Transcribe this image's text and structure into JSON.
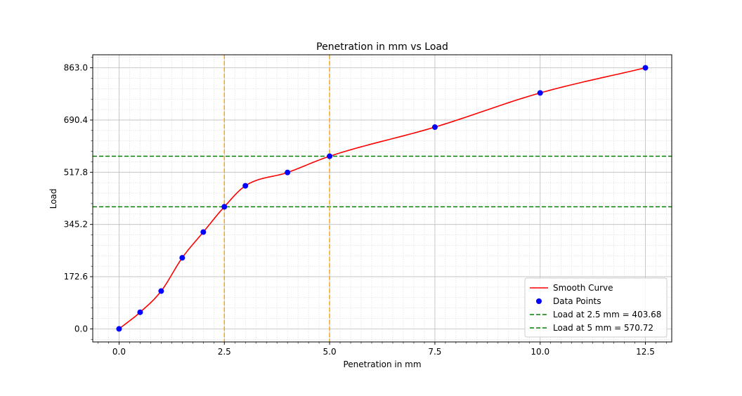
{
  "chart_data": {
    "type": "line",
    "title": "Penetration in mm vs Load",
    "xlabel": "Penetration in mm",
    "ylabel": "Load",
    "xlim": [
      -0.625,
      13.125
    ],
    "ylim": [
      -43.15,
      906.15
    ],
    "x_ticks": [
      0.0,
      2.5,
      5.0,
      7.5,
      10.0,
      12.5
    ],
    "x_tick_labels": [
      "0.0",
      "2.5",
      "5.0",
      "7.5",
      "10.0",
      "12.5"
    ],
    "y_ticks": [
      0.0,
      172.6,
      345.2,
      517.8,
      690.4,
      863.0
    ],
    "y_tick_labels": [
      "0.0",
      "172.6",
      "345.2",
      "517.8",
      "690.4",
      "863.0"
    ],
    "grid": true,
    "minor_grid": true,
    "legend_position": "lower-right",
    "series": [
      {
        "name": "Smooth Curve",
        "kind": "line",
        "color": "#ff0000",
        "x": [
          0,
          0.5,
          1,
          1.5,
          2,
          2.5,
          3,
          4,
          5,
          7.5,
          10,
          12.5
        ],
        "y": [
          0,
          55,
          125,
          235,
          320,
          403.68,
          473,
          517,
          570.72,
          667,
          780,
          863
        ]
      },
      {
        "name": "Data Points",
        "kind": "scatter",
        "color": "#0000ff",
        "x": [
          0,
          0.5,
          1,
          1.5,
          2,
          2.5,
          3,
          4,
          5,
          7.5,
          10,
          12.5
        ],
        "y": [
          0,
          55,
          125,
          235,
          320,
          403.68,
          473,
          517,
          570.72,
          667,
          780,
          863
        ]
      }
    ],
    "reference_lines": [
      {
        "name": "Load at 2.5 mm = 403.68",
        "orientation": "horizontal",
        "value": 403.68,
        "color": "#008000",
        "in_legend": true
      },
      {
        "name": "Load at 5 mm = 570.72",
        "orientation": "horizontal",
        "value": 570.72,
        "color": "#008000",
        "in_legend": true
      },
      {
        "orientation": "vertical",
        "value": 2.5,
        "color": "#ffa500",
        "in_legend": false
      },
      {
        "orientation": "vertical",
        "value": 5.0,
        "color": "#ffa500",
        "in_legend": false
      }
    ]
  }
}
